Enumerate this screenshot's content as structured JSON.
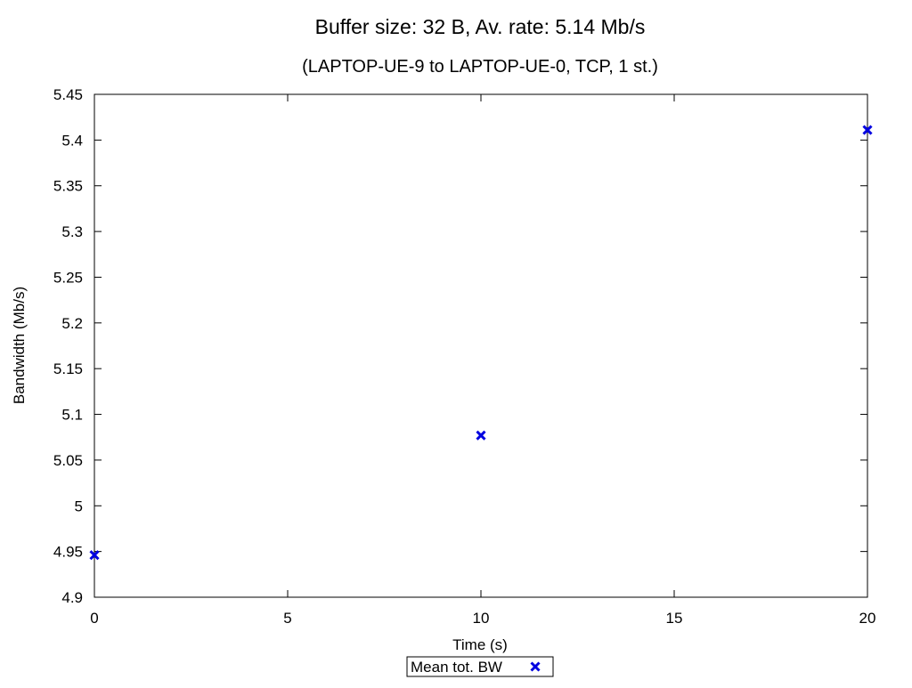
{
  "chart_data": {
    "type": "scatter",
    "title": "Buffer size: 32 B, Av. rate: 5.14 Mb/s",
    "subtitle": "(LAPTOP-UE-9 to LAPTOP-UE-0, TCP, 1 st.)",
    "xlabel": "Time (s)",
    "ylabel": "Bandwidth (Mb/s)",
    "xlim": [
      0,
      20
    ],
    "ylim": [
      4.9,
      5.45
    ],
    "xticks": [
      "0",
      "5",
      "10",
      "15",
      "20"
    ],
    "yticks": [
      "4.9",
      "4.95",
      "5",
      "5.05",
      "5.1",
      "5.15",
      "5.2",
      "5.25",
      "5.3",
      "5.35",
      "5.4",
      "5.45"
    ],
    "grid": false,
    "legend_position": "bottom-center",
    "series": [
      {
        "name": "Mean tot. BW",
        "marker": "x",
        "color": "#0000e0",
        "x": [
          0,
          10,
          20
        ],
        "y": [
          4.946,
          5.077,
          5.411
        ]
      }
    ]
  }
}
